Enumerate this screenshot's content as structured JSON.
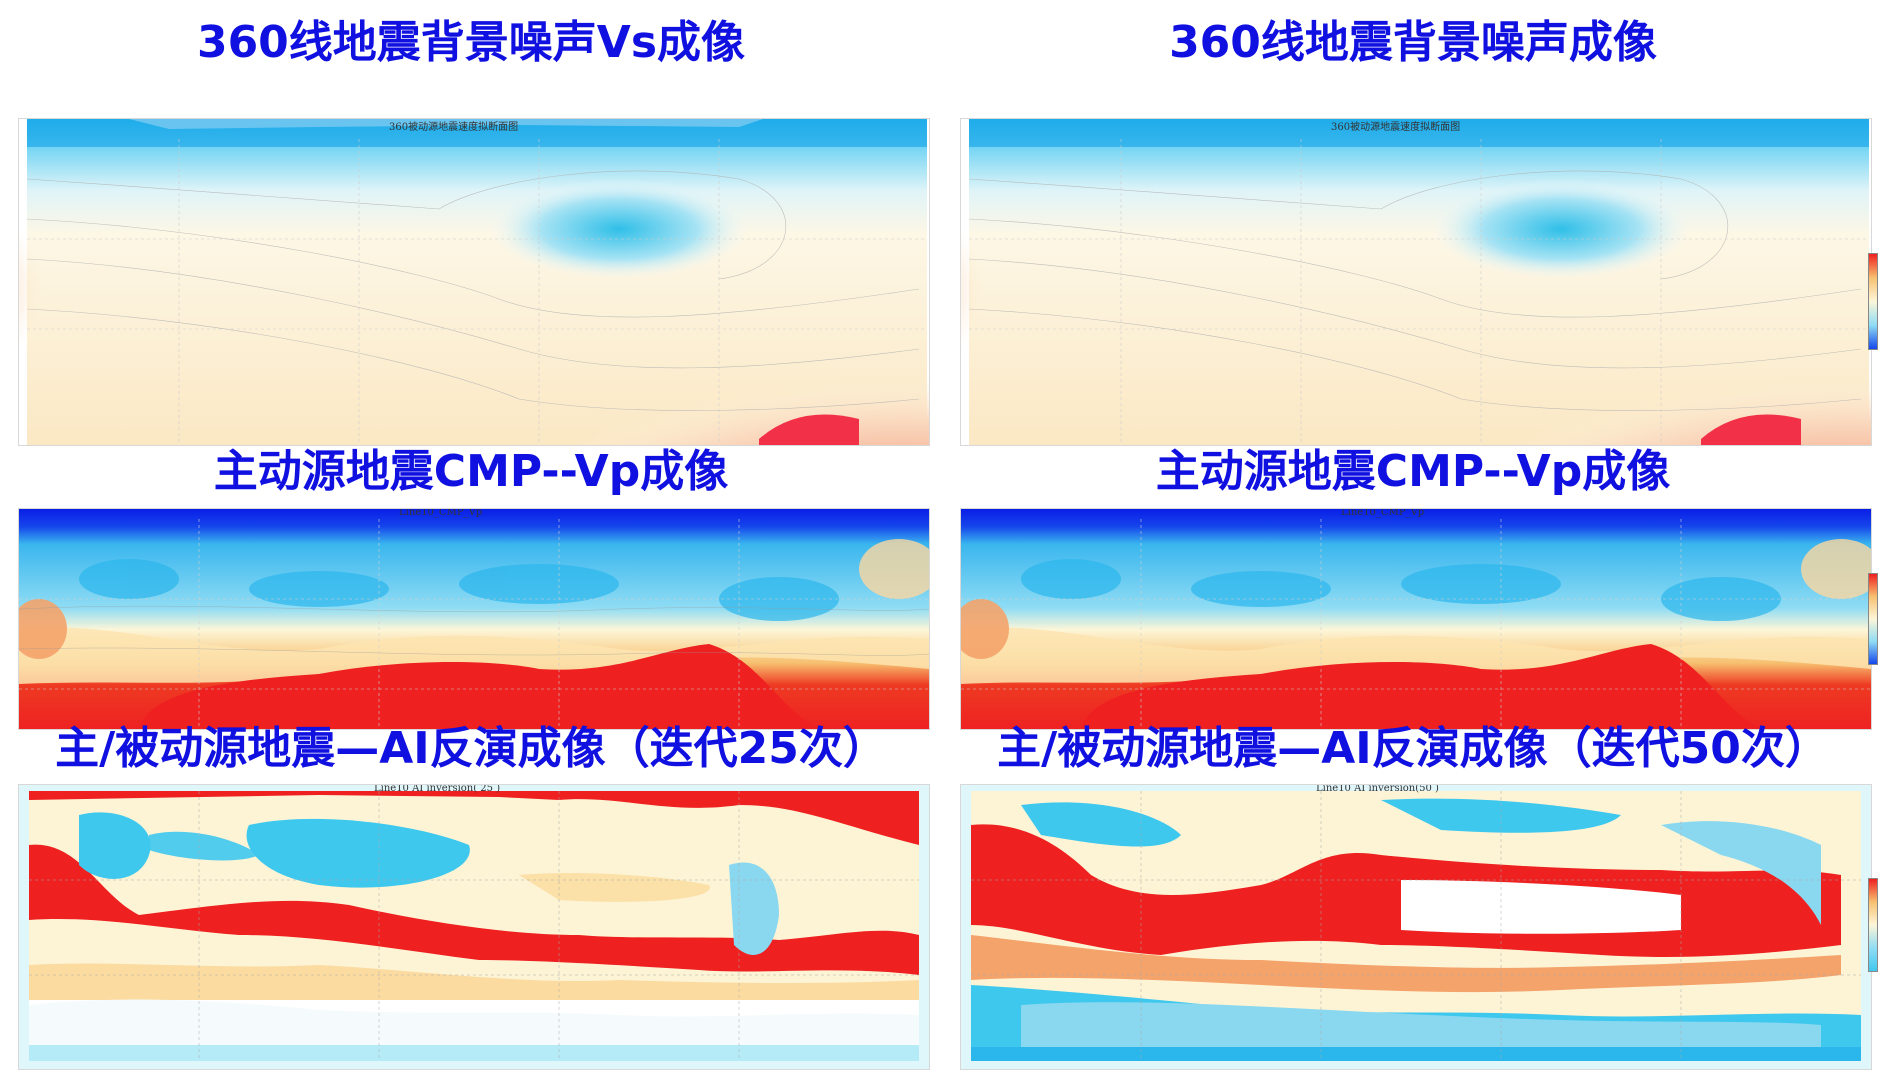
{
  "panels": {
    "left": {
      "row1_title": "360线地震背景噪声Vs成像",
      "row1_plot_title": "360被动源地震速度拟断面图",
      "row2_title": "主动源地震CMP--Vp成像",
      "row2_plot_title": "Line10_CMP_Vp",
      "row3_title": "主/被动源地震—AI反演成像（迭代25次）",
      "row3_plot_title": "Line10  AI  inversion(  25  )"
    },
    "right": {
      "row1_title": "360线地震背景噪声成像",
      "row1_plot_title": "360被动源地震速度拟断面图",
      "row2_title": "主动源地震CMP--Vp成像",
      "row2_plot_title": "Line10_CMP_Vp",
      "row3_title": "主/被动源地震—AI反演成像（迭代50次）",
      "row3_plot_title": "Line10  AI  inversion(50  )"
    }
  },
  "colors": {
    "title": "#1010e0",
    "deep_blue": "#0a1ee6",
    "cyan": "#3fc8ee",
    "light_cyan": "#b9ecf8",
    "cream": "#fdf6dc",
    "orange": "#f4a36a",
    "red": "#ee2020"
  }
}
